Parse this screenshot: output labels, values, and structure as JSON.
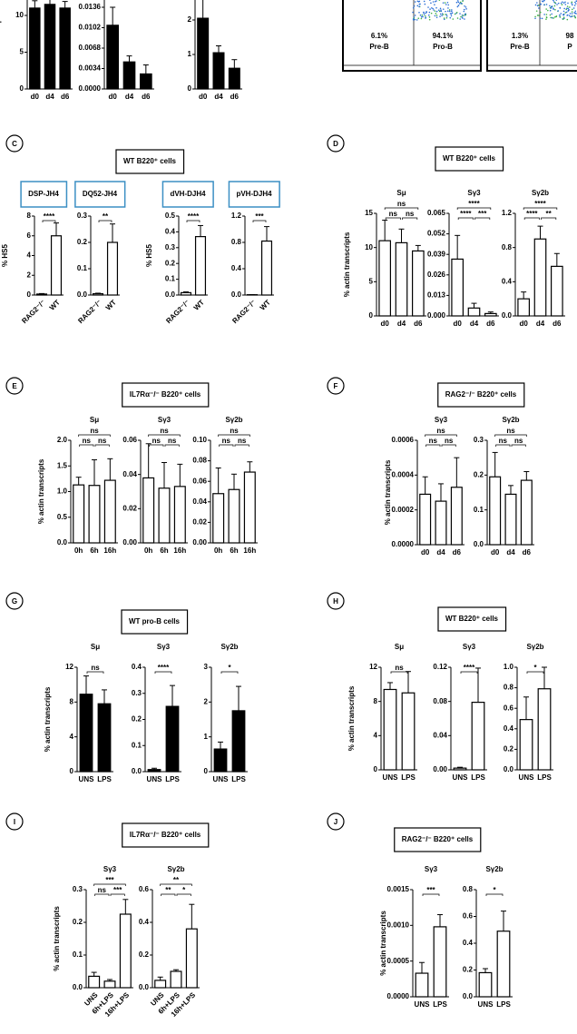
{
  "flow": {
    "gates": [
      {
        "percent": "6.1%",
        "name": "Pre-B"
      },
      {
        "percent": "94.1%",
        "name": "Pro-B"
      },
      {
        "percent": "1.3%",
        "name": "Pre-B"
      },
      {
        "percent": "98",
        "name": "P"
      }
    ]
  },
  "panels": [
    {
      "letter": "C",
      "title": "WT B220⁺ cells"
    },
    {
      "letter": "D",
      "title": "WT B220⁺ cells"
    },
    {
      "letter": "E",
      "title": "IL7Rα⁻/⁻ B220⁺ cells"
    },
    {
      "letter": "F",
      "title": "RAG2⁻/⁻ B220⁺ cells"
    },
    {
      "letter": "G",
      "title": "WT pro-B cells"
    },
    {
      "letter": "H",
      "title": "WT B220⁺ cells"
    },
    {
      "letter": "I",
      "title": "IL7Rα⁻/⁻ B220⁺ cells"
    },
    {
      "letter": "J",
      "title": "RAG2⁻/⁻ B220⁺ cells"
    }
  ],
  "chart_data": [
    {
      "type": "bar",
      "ylabel": "% actin transcripts",
      "categories": [
        "d0",
        "d4",
        "d6"
      ],
      "values": [
        11,
        11.5,
        11
      ],
      "errors": [
        1,
        0.8,
        0.9
      ],
      "color": "#000000",
      "ylim": [
        0,
        15
      ],
      "yticks": [
        0,
        5,
        10
      ]
    },
    {
      "type": "bar",
      "categories": [
        "d0",
        "d4",
        "d6"
      ],
      "values": [
        0.0106,
        0.0045,
        0.0025
      ],
      "errors": [
        0.003,
        0.001,
        0.0015
      ],
      "color": "#000000",
      "ylim": [
        0,
        0.017
      ],
      "yticks": [
        {
          "value": 0,
          "label": "0.0000"
        },
        0.0034,
        0.0068,
        0.0102,
        0.0136
      ]
    },
    {
      "type": "bar",
      "categories": [
        "d0",
        "d4",
        "d6"
      ],
      "values": [
        2.05,
        1.05,
        0.6
      ],
      "errors": [
        0.55,
        0.2,
        0.25
      ],
      "color": "#000000",
      "ylim": [
        0,
        2.6
      ],
      "yticks": [
        0,
        1,
        2
      ]
    },
    {
      "type": "bar",
      "title": "DSP-JH4",
      "ylabel": "% HS5",
      "categories": [
        "RAG2⁻/⁻",
        "WT"
      ],
      "values": [
        0.1,
        6.0
      ],
      "errors": [
        0.05,
        1.3
      ],
      "color": "#ffffff",
      "ylim": [
        0,
        8
      ],
      "yticks": [
        0,
        2,
        4,
        6,
        8
      ],
      "annotations": [
        {
          "label": "****",
          "groups": [
            "RAG2⁻/⁻",
            "WT"
          ]
        }
      ]
    },
    {
      "type": "bar",
      "title": "DQ52-JH4",
      "categories": [
        "RAG2⁻/⁻",
        "WT"
      ],
      "values": [
        0.005,
        0.2
      ],
      "errors": [
        0.002,
        0.07
      ],
      "color": "#ffffff",
      "ylim": [
        0,
        0.3
      ],
      "yticks": [
        {
          "value": 0,
          "label": "0.0"
        },
        0.1,
        0.2,
        0.3
      ],
      "annotations": [
        {
          "label": "**",
          "groups": [
            "RAG2⁻/⁻",
            "WT"
          ]
        }
      ]
    },
    {
      "type": "bar",
      "title": "dVH-DJH4",
      "ylabel": "% HS5",
      "categories": [
        "RAG2⁻/⁻",
        "WT"
      ],
      "values": [
        0.015,
        0.37
      ],
      "errors": [
        0.005,
        0.07
      ],
      "color": "#ffffff",
      "ylim": [
        0,
        0.5
      ],
      "yticks": [
        {
          "value": 0,
          "label": "0.0"
        },
        0.1,
        0.2,
        0.3,
        0.4,
        0.5
      ],
      "annotations": [
        {
          "label": "****",
          "groups": [
            "RAG2⁻/⁻",
            "WT"
          ]
        }
      ]
    },
    {
      "type": "bar",
      "title": "pVH-DJH4",
      "categories": [
        "RAG2⁻/⁻",
        "WT"
      ],
      "values": [
        0.005,
        0.82
      ],
      "errors": [
        0.002,
        0.22
      ],
      "color": "#ffffff",
      "ylim": [
        0,
        1.2
      ],
      "yticks": [
        {
          "value": 0,
          "label": "0.0"
        },
        0.4,
        0.8,
        1.2
      ],
      "annotations": [
        {
          "label": "***",
          "groups": [
            "RAG2⁻/⁻",
            "WT"
          ]
        }
      ]
    },
    {
      "type": "bar",
      "title": "Sμ",
      "ylabel": "% actin transcripts",
      "categories": [
        "d0",
        "d4",
        "d6"
      ],
      "values": [
        11,
        10.7,
        9.5
      ],
      "errors": [
        3,
        2,
        0.8
      ],
      "color": "#ffffff",
      "ylim": [
        0,
        15
      ],
      "yticks": [
        0,
        5,
        10,
        15
      ],
      "annotations": [
        {
          "label": "ns",
          "groups": [
            "d0",
            "d6"
          ]
        },
        {
          "label": "ns",
          "groups": [
            "d0",
            "d4"
          ]
        },
        {
          "label": "ns",
          "groups": [
            "d4",
            "d6"
          ]
        }
      ]
    },
    {
      "type": "bar",
      "title": "Sγ3",
      "categories": [
        "d0",
        "d4",
        "d6"
      ],
      "values": [
        0.036,
        0.005,
        0.0015
      ],
      "errors": [
        0.015,
        0.003,
        0.001
      ],
      "color": "#ffffff",
      "ylim": [
        0,
        0.065
      ],
      "yticks": [
        {
          "value": 0,
          "label": "0.000"
        },
        0.013,
        0.026,
        0.039,
        0.052,
        0.065
      ],
      "annotations": [
        {
          "label": "****",
          "groups": [
            "d0",
            "d6"
          ]
        },
        {
          "label": "****",
          "groups": [
            "d0",
            "d4"
          ]
        },
        {
          "label": "***",
          "groups": [
            "d4",
            "d6"
          ]
        }
      ]
    },
    {
      "type": "bar",
      "title": "Sγ2b",
      "categories": [
        "d0",
        "d4",
        "d6"
      ],
      "values": [
        0.2,
        0.9,
        0.58
      ],
      "errors": [
        0.08,
        0.15,
        0.15
      ],
      "color": "#ffffff",
      "ylim": [
        0,
        1.2
      ],
      "yticks": [
        {
          "value": 0,
          "label": "0.0"
        },
        0.4,
        0.8,
        1.2
      ],
      "annotations": [
        {
          "label": "****",
          "groups": [
            "d0",
            "d6"
          ]
        },
        {
          "label": "****",
          "groups": [
            "d0",
            "d4"
          ]
        },
        {
          "label": "**",
          "groups": [
            "d4",
            "d6"
          ]
        }
      ]
    },
    {
      "type": "bar",
      "title": "Sμ",
      "ylabel": "% actin transcripts",
      "categories": [
        "0h",
        "6h",
        "16h"
      ],
      "values": [
        1.13,
        1.12,
        1.22
      ],
      "errors": [
        0.15,
        0.5,
        0.42
      ],
      "color": "#ffffff",
      "ylim": [
        0,
        2
      ],
      "yticks": [
        {
          "value": 0,
          "label": "0.0"
        },
        0.5,
        {
          "value": 1,
          "label": "1.0"
        },
        1.5,
        {
          "value": 2,
          "label": "2.0"
        }
      ],
      "annotations": [
        {
          "label": "ns",
          "groups": [
            "0h",
            "16h"
          ]
        },
        {
          "label": "ns",
          "groups": [
            "0h",
            "6h"
          ]
        },
        {
          "label": "ns",
          "groups": [
            "6h",
            "16h"
          ]
        }
      ]
    },
    {
      "type": "bar",
      "title": "Sγ3",
      "categories": [
        "0h",
        "6h",
        "16h"
      ],
      "values": [
        0.038,
        0.032,
        0.033
      ],
      "errors": [
        0.02,
        0.015,
        0.013
      ],
      "color": "#ffffff",
      "ylim": [
        0,
        0.06
      ],
      "yticks": [
        {
          "value": 0,
          "label": "0.00"
        },
        0.02,
        0.04,
        0.06
      ],
      "annotations": [
        {
          "label": "ns",
          "groups": [
            "0h",
            "16h"
          ]
        },
        {
          "label": "ns",
          "groups": [
            "0h",
            "6h"
          ]
        },
        {
          "label": "ns",
          "groups": [
            "6h",
            "16h"
          ]
        }
      ]
    },
    {
      "type": "bar",
      "title": "Sγ2b",
      "categories": [
        "0h",
        "6h",
        "16h"
      ],
      "values": [
        0.048,
        0.052,
        0.069
      ],
      "errors": [
        0.025,
        0.015,
        0.01
      ],
      "color": "#ffffff",
      "ylim": [
        0,
        0.1
      ],
      "yticks": [
        {
          "value": 0,
          "label": "0.00"
        },
        0.02,
        0.04,
        0.06,
        0.08,
        {
          "value": 0.1,
          "label": "0.10"
        }
      ],
      "annotations": [
        {
          "label": "ns",
          "groups": [
            "0h",
            "16h"
          ]
        },
        {
          "label": "ns",
          "groups": [
            "0h",
            "6h"
          ]
        },
        {
          "label": "ns",
          "groups": [
            "6h",
            "16h"
          ]
        }
      ]
    },
    {
      "type": "bar",
      "title": "Sγ3",
      "ylabel": "% actin transcripts",
      "categories": [
        "d0",
        "d4",
        "d6"
      ],
      "values": [
        0.00029,
        0.00025,
        0.00033
      ],
      "errors": [
        0.0001,
        0.0001,
        0.00017
      ],
      "color": "#ffffff",
      "ylim": [
        0,
        0.0006
      ],
      "yticks": [
        {
          "value": 0,
          "label": "0.0000"
        },
        0.0002,
        0.0004,
        0.0006
      ],
      "annotations": [
        {
          "label": "ns",
          "groups": [
            "d0",
            "d6"
          ]
        },
        {
          "label": "ns",
          "groups": [
            "d0",
            "d4"
          ]
        },
        {
          "label": "ns",
          "groups": [
            "d4",
            "d6"
          ]
        }
      ]
    },
    {
      "type": "bar",
      "title": "Sγ2b",
      "categories": [
        "d0",
        "d4",
        "d6"
      ],
      "values": [
        0.195,
        0.145,
        0.185
      ],
      "errors": [
        0.07,
        0.025,
        0.025
      ],
      "color": "#ffffff",
      "ylim": [
        0,
        0.3
      ],
      "yticks": [
        {
          "value": 0,
          "label": "0.0"
        },
        0.1,
        0.2,
        0.3
      ],
      "annotations": [
        {
          "label": "ns",
          "groups": [
            "d0",
            "d6"
          ]
        },
        {
          "label": "ns",
          "groups": [
            "d0",
            "d4"
          ]
        },
        {
          "label": "ns",
          "groups": [
            "d4",
            "d6"
          ]
        }
      ]
    },
    {
      "type": "bar",
      "title": "Sμ",
      "ylabel": "% actin transcripts",
      "categories": [
        "UNS",
        "LPS"
      ],
      "values": [
        8.9,
        7.8
      ],
      "errors": [
        2.1,
        1.6
      ],
      "color": "#000000",
      "ylim": [
        0,
        12
      ],
      "yticks": [
        0,
        4,
        8,
        12
      ],
      "annotations": [
        {
          "label": "ns",
          "groups": [
            "UNS",
            "LPS"
          ]
        }
      ]
    },
    {
      "type": "bar",
      "title": "Sγ3",
      "categories": [
        "UNS",
        "LPS"
      ],
      "values": [
        0.008,
        0.25
      ],
      "errors": [
        0.005,
        0.08
      ],
      "color": "#000000",
      "ylim": [
        0,
        0.4
      ],
      "yticks": [
        {
          "value": 0,
          "label": "0.0"
        },
        0.1,
        0.2,
        0.3,
        0.4
      ],
      "annotations": [
        {
          "label": "****",
          "groups": [
            "UNS",
            "LPS"
          ]
        }
      ]
    },
    {
      "type": "bar",
      "title": "Sγ2b",
      "categories": [
        "UNS",
        "LPS"
      ],
      "values": [
        0.65,
        1.75
      ],
      "errors": [
        0.2,
        0.7
      ],
      "color": "#000000",
      "ylim": [
        0,
        3
      ],
      "yticks": [
        0,
        1,
        2,
        3
      ],
      "annotations": [
        {
          "label": "*",
          "groups": [
            "UNS",
            "LPS"
          ]
        }
      ]
    },
    {
      "type": "bar",
      "title": "Sμ",
      "ylabel": "% actin transcripts",
      "categories": [
        "UNS",
        "LPS"
      ],
      "values": [
        9.4,
        9.0
      ],
      "errors": [
        0.8,
        2.5
      ],
      "color": "#ffffff",
      "ylim": [
        0,
        12
      ],
      "yticks": [
        0,
        4,
        8,
        12
      ],
      "annotations": [
        {
          "label": "ns",
          "groups": [
            "UNS",
            "LPS"
          ]
        }
      ]
    },
    {
      "type": "bar",
      "title": "Sγ3",
      "categories": [
        "UNS",
        "LPS"
      ],
      "values": [
        0.002,
        0.079
      ],
      "errors": [
        0.001,
        0.04
      ],
      "color": "#ffffff",
      "ylim": [
        0,
        0.12
      ],
      "yticks": [
        {
          "value": 0,
          "label": "0.00"
        },
        0.04,
        0.08,
        0.12
      ],
      "annotations": [
        {
          "label": "****",
          "groups": [
            "UNS",
            "LPS"
          ]
        }
      ]
    },
    {
      "type": "bar",
      "title": "Sγ2b",
      "categories": [
        "UNS",
        "LPS"
      ],
      "values": [
        0.49,
        0.79
      ],
      "errors": [
        0.22,
        0.21
      ],
      "color": "#ffffff",
      "ylim": [
        0,
        1
      ],
      "yticks": [
        {
          "value": 0,
          "label": "0.0"
        },
        0.2,
        0.4,
        0.6,
        0.8,
        {
          "value": 1,
          "label": "1.0"
        }
      ],
      "annotations": [
        {
          "label": "*",
          "groups": [
            "UNS",
            "LPS"
          ]
        }
      ]
    },
    {
      "type": "bar",
      "title": "Sγ3",
      "ylabel": "% actin transcripts",
      "categories": [
        "UNS",
        "6h+LPS",
        "16h+LPS"
      ],
      "values": [
        0.035,
        0.02,
        0.225
      ],
      "errors": [
        0.012,
        0.005,
        0.045
      ],
      "color": "#ffffff",
      "ylim": [
        0,
        0.3
      ],
      "yticks": [
        {
          "value": 0,
          "label": "0.0"
        },
        0.1,
        0.2,
        0.3
      ],
      "annotations": [
        {
          "label": "***",
          "groups": [
            "UNS",
            "16h+LPS"
          ]
        },
        {
          "label": "ns",
          "groups": [
            "UNS",
            "6h+LPS"
          ]
        },
        {
          "label": "***",
          "groups": [
            "6h+LPS",
            "16h+LPS"
          ]
        }
      ]
    },
    {
      "type": "bar",
      "title": "Sγ2b",
      "categories": [
        "UNS",
        "6h+LPS",
        "16h+LPS"
      ],
      "values": [
        0.045,
        0.1,
        0.36
      ],
      "errors": [
        0.02,
        0.01,
        0.15
      ],
      "color": "#ffffff",
      "ylim": [
        0,
        0.6
      ],
      "yticks": [
        {
          "value": 0,
          "label": "0.0"
        },
        0.2,
        0.4,
        0.6
      ],
      "annotations": [
        {
          "label": "**",
          "groups": [
            "UNS",
            "16h+LPS"
          ]
        },
        {
          "label": "**",
          "groups": [
            "UNS",
            "6h+LPS"
          ]
        },
        {
          "label": "*",
          "groups": [
            "6h+LPS",
            "16h+LPS"
          ]
        }
      ]
    },
    {
      "type": "bar",
      "title": "Sγ3",
      "ylabel": "% actin transcripts",
      "categories": [
        "UNS",
        "LPS"
      ],
      "values": [
        0.00033,
        0.00098
      ],
      "errors": [
        0.00015,
        0.00017
      ],
      "color": "#ffffff",
      "ylim": [
        0,
        0.0015
      ],
      "yticks": [
        {
          "value": 0,
          "label": "0.0000"
        },
        0.0005,
        {
          "value": 0.001,
          "label": "0.0010"
        },
        0.0015
      ],
      "annotations": [
        {
          "label": "***",
          "groups": [
            "UNS",
            "LPS"
          ]
        }
      ]
    },
    {
      "type": "bar",
      "title": "Sγ2b",
      "categories": [
        "UNS",
        "LPS"
      ],
      "values": [
        0.18,
        0.49
      ],
      "errors": [
        0.03,
        0.15
      ],
      "color": "#ffffff",
      "ylim": [
        0,
        0.8
      ],
      "yticks": [
        {
          "value": 0,
          "label": "0.0"
        },
        0.2,
        0.4,
        0.6,
        0.8
      ],
      "annotations": [
        {
          "label": "*",
          "groups": [
            "UNS",
            "LPS"
          ]
        }
      ]
    }
  ]
}
